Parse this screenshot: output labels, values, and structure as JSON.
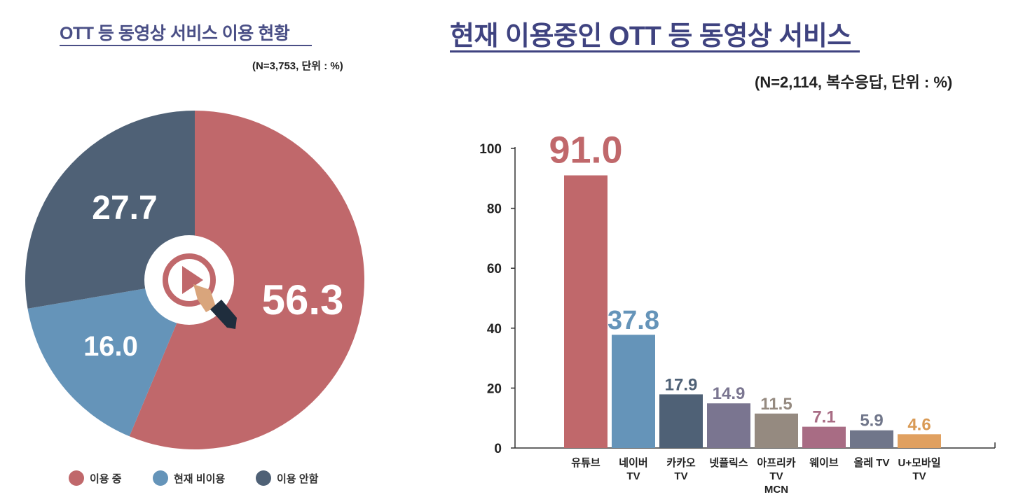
{
  "chart_data": [
    {
      "type": "pie",
      "title": "OTT 등 동영상 서비스 이용 현황",
      "subtitle": "(N=3,753, 단위 : %)",
      "slices": [
        {
          "label": "이용 중",
          "value": 56.3,
          "value_label": "56.3",
          "color": "#c0686b"
        },
        {
          "label": "현재 비이용",
          "value": 16.0,
          "value_label": "16.0",
          "color": "#6594b9"
        },
        {
          "label": "이용 안함",
          "value": 27.7,
          "value_label": "27.7",
          "color": "#4f6176"
        }
      ],
      "legend": "bottom",
      "center_icon": "play-button-hand-icon"
    },
    {
      "type": "bar",
      "title": "현재 이용중인 OTT 등 동영상 서비스",
      "subtitle": "(N=2,114, 복수응답, 단위 : %)",
      "categories": [
        [
          "유튜브"
        ],
        [
          "네이버",
          "TV"
        ],
        [
          "카카오",
          "TV"
        ],
        [
          "넷플릭스"
        ],
        [
          "아프리카",
          "TV",
          "MCN"
        ],
        [
          "웨이브"
        ],
        [
          "올레 TV"
        ],
        [
          "U+모바일",
          "TV"
        ]
      ],
      "values": [
        91.0,
        37.8,
        17.9,
        14.9,
        11.5,
        7.1,
        5.9,
        4.6
      ],
      "value_labels": [
        "91.0",
        "37.8",
        "17.9",
        "14.9",
        "11.5",
        "7.1",
        "5.9",
        "4.6"
      ],
      "colors": [
        "#c0686b",
        "#6594b9",
        "#4f6176",
        "#7a7590",
        "#958a80",
        "#a86c84",
        "#70768a",
        "#e0a060"
      ],
      "label_colors": [
        "#c0686b",
        "#6594b9",
        "#4f6176",
        "#7a7590",
        "#958a80",
        "#a86c84",
        "#70768a",
        "#d99a55"
      ],
      "yticks": [
        "0",
        "20",
        "40",
        "60",
        "80",
        "100"
      ],
      "ylim": [
        0,
        100
      ],
      "grid": false
    }
  ]
}
